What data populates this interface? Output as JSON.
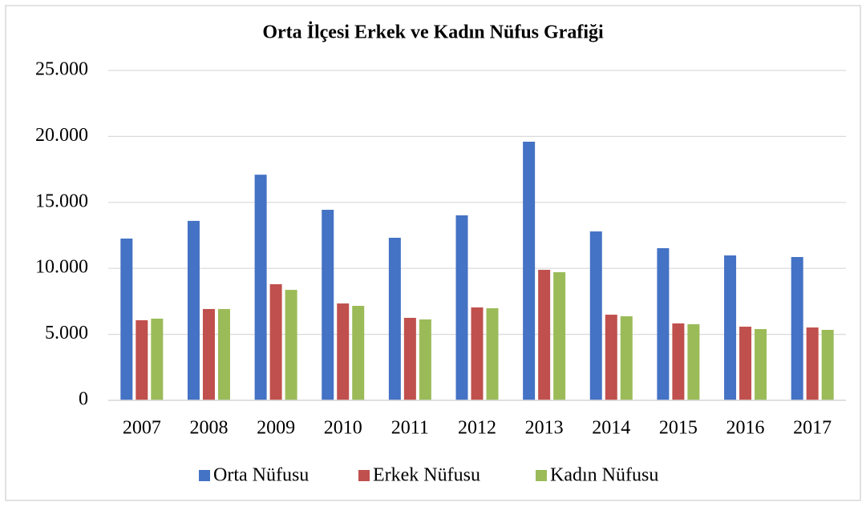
{
  "chart_data": {
    "type": "bar",
    "title": "Orta İlçesi Erkek ve Kadın Nüfus Grafiği",
    "categories": [
      "2007",
      "2008",
      "2009",
      "2010",
      "2011",
      "2012",
      "2013",
      "2014",
      "2015",
      "2016",
      "2017"
    ],
    "series": [
      {
        "name": "Orta Nüfusu",
        "color": "#4472c4",
        "values": [
          12260,
          13600,
          17100,
          14440,
          12320,
          14020,
          19600,
          12800,
          11530,
          10980,
          10860
        ]
      },
      {
        "name": "Erkek Nüfusu",
        "color": "#c0504d",
        "values": [
          6070,
          6920,
          8800,
          7340,
          6250,
          7040,
          9890,
          6490,
          5830,
          5580,
          5520
        ]
      },
      {
        "name": "Kadın Nüfusu",
        "color": "#9bbb59",
        "values": [
          6190,
          6920,
          8370,
          7160,
          6130,
          6980,
          9710,
          6370,
          5770,
          5400,
          5340
        ]
      }
    ],
    "ylim": [
      0,
      25000
    ],
    "yticks": [
      0,
      {
        "value": 5000,
        "label": "5.000"
      },
      {
        "value": 10000,
        "label": "10.000"
      },
      {
        "value": 15000,
        "label": "15.000"
      },
      {
        "value": 20000,
        "label": "20.000"
      },
      {
        "value": 25000,
        "label": "25.000"
      }
    ],
    "grid": true,
    "legend": "bottom"
  }
}
